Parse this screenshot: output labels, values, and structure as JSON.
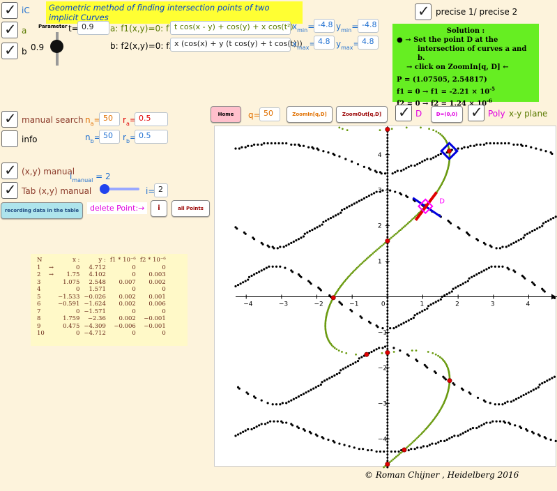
{
  "title": "Geometric method of finding intersection points of two implicit Curves",
  "checkboxes": {
    "iC": "iC",
    "a": "a",
    "b": "b",
    "precise": "precise 1/ precise 2",
    "manual_search": "manual search",
    "info": "info",
    "xy_manual": "(x,y) manual",
    "tab_manual": "Tab (x,y) manual",
    "D": "D",
    "poly": "Poly"
  },
  "parameter": {
    "label": "Parameter",
    "t_label": "t=",
    "t_value": "0.9",
    "slider_value": "0.9"
  },
  "f1": {
    "label": "a: f1(x,y)=0:  f1=",
    "value": "t cos(x - y) + cos(y) + x cos(t²)"
  },
  "f2": {
    "label": "b: f2(x,y)=0:  f2=",
    "value": "x (cos(x) + y (t cos(y) + t cos(t)))"
  },
  "bounds": {
    "xmin": "-4.8",
    "xmax": "4.8",
    "ymin": "-4.8",
    "ymax": "4.8"
  },
  "solution": {
    "heading": "Solution :",
    "line1": "● → Set the point D at the",
    "line2": "intersection  of curves a and b.",
    "line3": "→   click  on ZoomIn[q, D]    ←",
    "P": "P = (1.07505,  2.54817)",
    "f1": "f1 = 0 → f1 = -2.21  ×  10",
    "f1_exp": "-5",
    "f2": "f2 = 0 → f2 = 1.24  ×  10",
    "f2_exp": "-6"
  },
  "controls": {
    "home": "Home",
    "q_label": "q=",
    "q_value": "50",
    "zoom_in": "ZoomIn[q,D]",
    "zoom_out": "ZoomOut[q,D]",
    "d_origin": "D=(0,0)",
    "plane": "x-y plane"
  },
  "search": {
    "na_label": "n",
    "na_sub": "a",
    "na_value": "50",
    "ra_label": "r",
    "ra_sub": "a",
    "ra_value": "0.5",
    "nb_label": "n",
    "nb_sub": "b",
    "nb_value": "50",
    "rb_label": "r",
    "rb_sub": "b",
    "rb_value": "0.5"
  },
  "manual": {
    "i_label": "i",
    "i_sub": "manual",
    "i_value": "= 2",
    "i2_label": "i=",
    "i2_value": "2"
  },
  "buttons": {
    "recording": "recording data in the table",
    "delete_label": "delete Point:→",
    "i": "i",
    "all": "all Points"
  },
  "table": {
    "headers": [
      "N",
      "x :",
      "y :",
      "f1 * 10⁻⁶",
      "f2 * 10⁻⁶"
    ],
    "rows": [
      [
        "1",
        "→",
        "0",
        "4.712",
        "0",
        "0"
      ],
      [
        "2",
        "→",
        "1.75",
        "4.102",
        "0",
        "0.003"
      ],
      [
        "3",
        "",
        "1.075",
        "2.548",
        "0.007",
        "0.002"
      ],
      [
        "4",
        "",
        "0",
        "1.571",
        "0",
        "0"
      ],
      [
        "5",
        "",
        "−1.533",
        "−0.026",
        "0.002",
        "0.001"
      ],
      [
        "6",
        "",
        "−0.591",
        "−1.624",
        "0.002",
        "0.006"
      ],
      [
        "7",
        "",
        "0",
        "−1.571",
        "0",
        "0"
      ],
      [
        "8",
        "",
        "1.759",
        "−2.36",
        "0.002",
        "−0.001"
      ],
      [
        "9",
        "",
        "0.475",
        "−4.309",
        "−0.006",
        "−0.001"
      ],
      [
        "10",
        "",
        "0",
        "−4.712",
        "0",
        "0"
      ]
    ]
  },
  "plot": {
    "x_ticks": [
      "−4",
      "−3",
      "−2",
      "−1",
      "0",
      "1",
      "2",
      "3",
      "4"
    ],
    "y_ticks": [
      "4",
      "3",
      "2",
      "1",
      "−1",
      "−2",
      "−3",
      "−4"
    ],
    "point_label": "D",
    "colors": {
      "curve_a": "#6a9a10",
      "curve_b": "#000000",
      "point": "#e00000",
      "marker": "#0000dd",
      "poly": "#ff00ff"
    }
  },
  "credit": "© Roman Chijner ,  Heidelberg 2016"
}
